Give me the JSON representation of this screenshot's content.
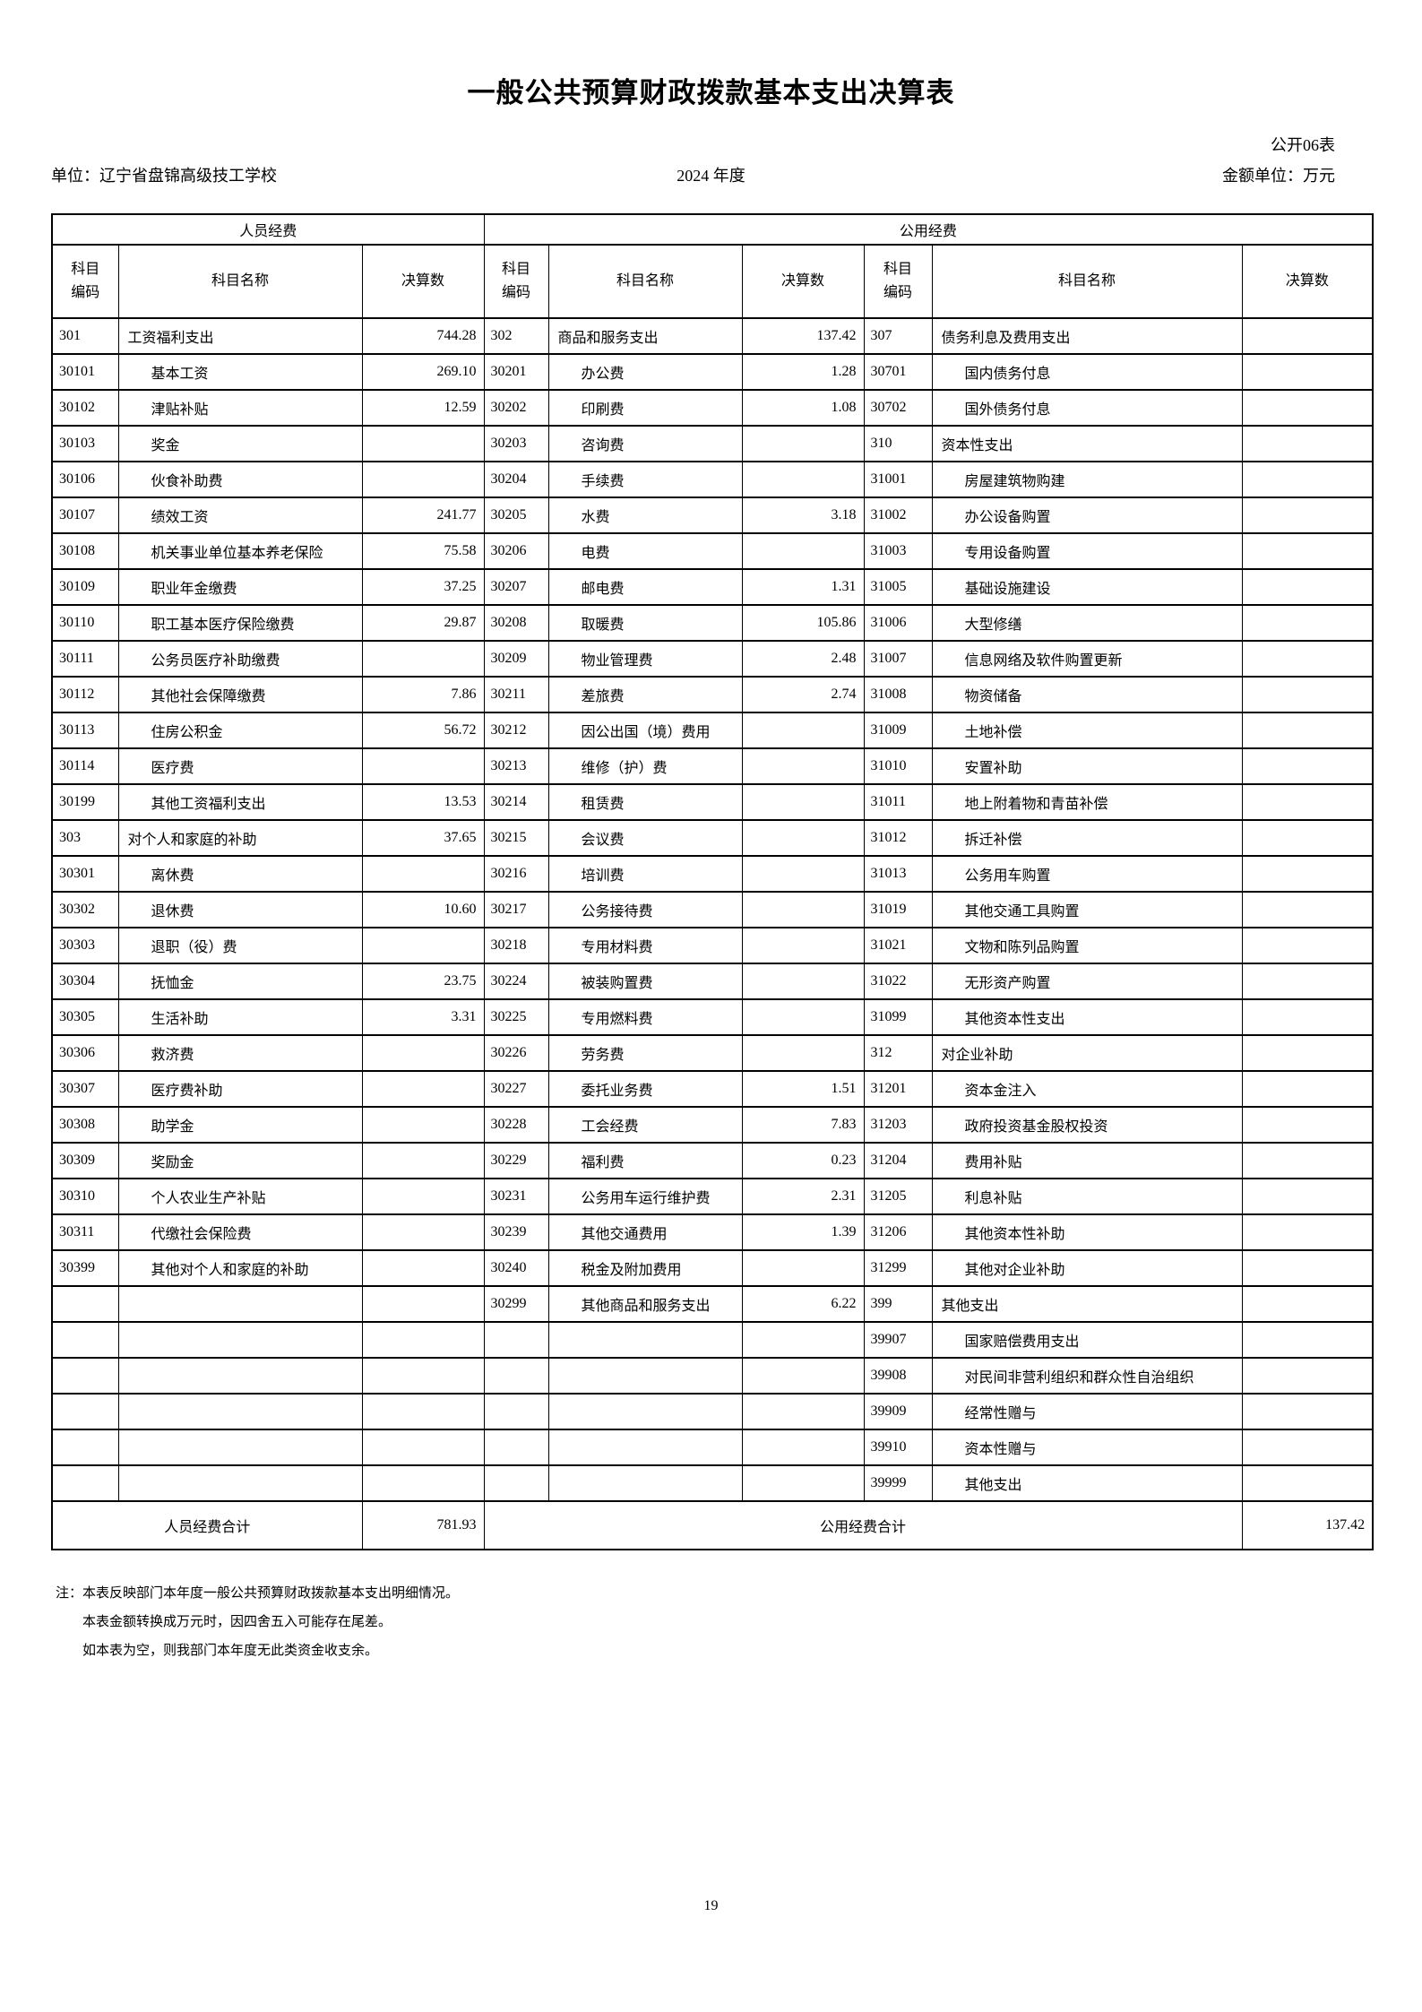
{
  "page": {
    "title": "一般公共预算财政拨款基本支出决算表",
    "form_no": "公开06表",
    "unit": "单位：辽宁省盘锦高级技工学校",
    "year": "2024 年度",
    "amount_unit": "金额单位：万元",
    "page_number": "19"
  },
  "table": {
    "group_headers": {
      "personnel": "人员经费",
      "public": "公用经费"
    },
    "column_headers": {
      "code_line1": "科目",
      "code_line2": "编码",
      "name": "科目名称",
      "value": "决算数"
    },
    "rows": [
      [
        "301",
        "工资福利支出",
        0,
        "744.28",
        "302",
        "商品和服务支出",
        0,
        "137.42",
        "307",
        "债务利息及费用支出",
        0,
        ""
      ],
      [
        "30101",
        "基本工资",
        1,
        "269.10",
        "30201",
        "办公费",
        1,
        "1.28",
        "30701",
        "国内债务付息",
        1,
        ""
      ],
      [
        "30102",
        "津贴补贴",
        1,
        "12.59",
        "30202",
        "印刷费",
        1,
        "1.08",
        "30702",
        "国外债务付息",
        1,
        ""
      ],
      [
        "30103",
        "奖金",
        1,
        "",
        "30203",
        "咨询费",
        1,
        "",
        "310",
        "资本性支出",
        0,
        ""
      ],
      [
        "30106",
        "伙食补助费",
        1,
        "",
        "30204",
        "手续费",
        1,
        "",
        "31001",
        "房屋建筑物购建",
        1,
        ""
      ],
      [
        "30107",
        "绩效工资",
        1,
        "241.77",
        "30205",
        "水费",
        1,
        "3.18",
        "31002",
        "办公设备购置",
        1,
        ""
      ],
      [
        "30108",
        "机关事业单位基本养老保险",
        1,
        "75.58",
        "30206",
        "电费",
        1,
        "",
        "31003",
        "专用设备购置",
        1,
        ""
      ],
      [
        "30109",
        "职业年金缴费",
        1,
        "37.25",
        "30207",
        "邮电费",
        1,
        "1.31",
        "31005",
        "基础设施建设",
        1,
        ""
      ],
      [
        "30110",
        "职工基本医疗保险缴费",
        1,
        "29.87",
        "30208",
        "取暖费",
        1,
        "105.86",
        "31006",
        "大型修缮",
        1,
        ""
      ],
      [
        "30111",
        "公务员医疗补助缴费",
        1,
        "",
        "30209",
        "物业管理费",
        1,
        "2.48",
        "31007",
        "信息网络及软件购置更新",
        1,
        ""
      ],
      [
        "30112",
        "其他社会保障缴费",
        1,
        "7.86",
        "30211",
        "差旅费",
        1,
        "2.74",
        "31008",
        "物资储备",
        1,
        ""
      ],
      [
        "30113",
        "住房公积金",
        1,
        "56.72",
        "30212",
        "因公出国（境）费用",
        1,
        "",
        "31009",
        "土地补偿",
        1,
        ""
      ],
      [
        "30114",
        "医疗费",
        1,
        "",
        "30213",
        "维修（护）费",
        1,
        "",
        "31010",
        "安置补助",
        1,
        ""
      ],
      [
        "30199",
        "其他工资福利支出",
        1,
        "13.53",
        "30214",
        "租赁费",
        1,
        "",
        "31011",
        "地上附着物和青苗补偿",
        1,
        ""
      ],
      [
        "303",
        "对个人和家庭的补助",
        0,
        "37.65",
        "30215",
        "会议费",
        1,
        "",
        "31012",
        "拆迁补偿",
        1,
        ""
      ],
      [
        "30301",
        "离休费",
        1,
        "",
        "30216",
        "培训费",
        1,
        "",
        "31013",
        "公务用车购置",
        1,
        ""
      ],
      [
        "30302",
        "退休费",
        1,
        "10.60",
        "30217",
        "公务接待费",
        1,
        "",
        "31019",
        "其他交通工具购置",
        1,
        ""
      ],
      [
        "30303",
        "退职（役）费",
        1,
        "",
        "30218",
        "专用材料费",
        1,
        "",
        "31021",
        "文物和陈列品购置",
        1,
        ""
      ],
      [
        "30304",
        "抚恤金",
        1,
        "23.75",
        "30224",
        "被装购置费",
        1,
        "",
        "31022",
        "无形资产购置",
        1,
        ""
      ],
      [
        "30305",
        "生活补助",
        1,
        "3.31",
        "30225",
        "专用燃料费",
        1,
        "",
        "31099",
        "其他资本性支出",
        1,
        ""
      ],
      [
        "30306",
        "救济费",
        1,
        "",
        "30226",
        "劳务费",
        1,
        "",
        "312",
        "对企业补助",
        0,
        ""
      ],
      [
        "30307",
        "医疗费补助",
        1,
        "",
        "30227",
        "委托业务费",
        1,
        "1.51",
        "31201",
        "资本金注入",
        1,
        ""
      ],
      [
        "30308",
        "助学金",
        1,
        "",
        "30228",
        "工会经费",
        1,
        "7.83",
        "31203",
        "政府投资基金股权投资",
        1,
        ""
      ],
      [
        "30309",
        "奖励金",
        1,
        "",
        "30229",
        "福利费",
        1,
        "0.23",
        "31204",
        "费用补贴",
        1,
        ""
      ],
      [
        "30310",
        "个人农业生产补贴",
        1,
        "",
        "30231",
        "公务用车运行维护费",
        1,
        "2.31",
        "31205",
        "利息补贴",
        1,
        ""
      ],
      [
        "30311",
        "代缴社会保险费",
        1,
        "",
        "30239",
        "其他交通费用",
        1,
        "1.39",
        "31206",
        "其他资本性补助",
        1,
        ""
      ],
      [
        "30399",
        "其他对个人和家庭的补助",
        1,
        "",
        "30240",
        "税金及附加费用",
        1,
        "",
        "31299",
        "其他对企业补助",
        1,
        ""
      ],
      [
        "",
        "",
        0,
        "",
        "30299",
        "其他商品和服务支出",
        1,
        "6.22",
        "399",
        "其他支出",
        0,
        ""
      ],
      [
        "",
        "",
        0,
        "",
        "",
        "",
        0,
        "",
        "39907",
        "国家赔偿费用支出",
        1,
        ""
      ],
      [
        "",
        "",
        0,
        "",
        "",
        "",
        0,
        "",
        "39908",
        "对民间非营利组织和群众性自治组织",
        1,
        ""
      ],
      [
        "",
        "",
        0,
        "",
        "",
        "",
        0,
        "",
        "39909",
        "经常性赠与",
        1,
        ""
      ],
      [
        "",
        "",
        0,
        "",
        "",
        "",
        0,
        "",
        "39910",
        "资本性赠与",
        1,
        ""
      ],
      [
        "",
        "",
        0,
        "",
        "",
        "",
        0,
        "",
        "39999",
        "其他支出",
        1,
        ""
      ]
    ],
    "totals": {
      "personnel_label": "人员经费合计",
      "personnel_value": "781.93",
      "public_label": "公用经费合计",
      "public_value": "137.42"
    }
  },
  "notes": [
    "注：本表反映部门本年度一般公共预算财政拨款基本支出明细情况。",
    "本表金额转换成万元时，因四舍五入可能存在尾差。",
    "如本表为空，则我部门本年度无此类资金收支余。"
  ]
}
